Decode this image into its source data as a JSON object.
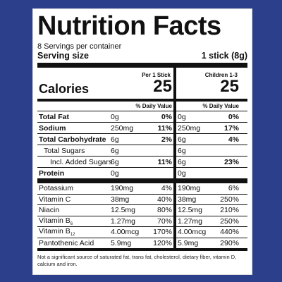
{
  "title": "Nutrition Facts",
  "servings_per_container": "8 Servings per container",
  "serving_size_label": "Serving size",
  "serving_size_value": "1 stick (8g)",
  "columns": {
    "col1_header": "Per 1 Stick",
    "col2_header": "Children 1-3"
  },
  "calories": {
    "label": "Calories",
    "col1": "25",
    "col2": "25"
  },
  "daily_value_label": "% Daily Value",
  "nutrients": [
    {
      "name": "Total Fat",
      "bold": true,
      "indent": 0,
      "amt1": "0g",
      "pct1": "0%",
      "amt2": "0g",
      "pct2": "0%"
    },
    {
      "name": "Sodium",
      "bold": true,
      "indent": 0,
      "amt1": "250mg",
      "pct1": "11%",
      "amt2": "250mg",
      "pct2": "17%"
    },
    {
      "name": "Total Carbohydrate",
      "bold": true,
      "indent": 0,
      "amt1": "6g",
      "pct1": "2%",
      "amt2": "6g",
      "pct2": "4%"
    },
    {
      "name": "Total Sugars",
      "bold": false,
      "indent": 1,
      "amt1": "6g",
      "pct1": "",
      "amt2": "6g",
      "pct2": ""
    },
    {
      "name": "Incl. Added Sugars",
      "bold": false,
      "indent": 2,
      "amt1": "6g",
      "pct1": "11%",
      "amt2": "6g",
      "pct2": "23%"
    },
    {
      "name": "Protein",
      "bold": true,
      "indent": 0,
      "amt1": "0g",
      "pct1": "",
      "amt2": "0g",
      "pct2": ""
    }
  ],
  "vitamins": [
    {
      "name": "Potassium",
      "amt1": "190mg",
      "pct1": "4%",
      "amt2": "190mg",
      "pct2": "6%"
    },
    {
      "name": "Vitamin C",
      "amt1": "38mg",
      "pct1": "40%",
      "amt2": "38mg",
      "pct2": "250%"
    },
    {
      "name": "Niacin",
      "amt1": "12.5mg",
      "pct1": "80%",
      "amt2": "12.5mg",
      "pct2": "210%"
    },
    {
      "name": "Vitamin B",
      "sub": "6",
      "amt1": "1.27mg",
      "pct1": "70%",
      "amt2": "1.27mg",
      "pct2": "250%"
    },
    {
      "name": "Vitamin B",
      "sub": "12",
      "amt1": "4.00mcg",
      "pct1": "170%",
      "amt2": "4.00mcg",
      "pct2": "440%"
    },
    {
      "name": "Pantothenic Acid",
      "amt1": "5.9mg",
      "pct1": "120%",
      "amt2": "5.9mg",
      "pct2": "290%"
    }
  ],
  "footnote": "Not a significant source of saturated fat, trans fat, cholesterol, dietary fiber, vitamin D, calcium and iron."
}
